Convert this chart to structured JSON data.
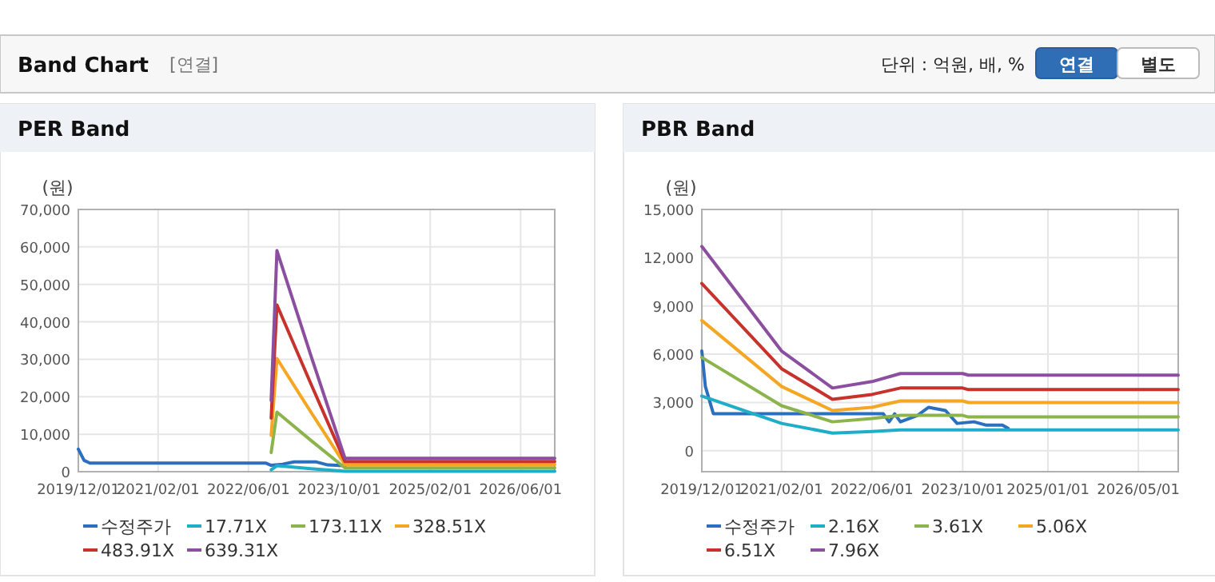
{
  "chart_data": [
    {
      "type": "other",
      "title": "Band Chart",
      "annotations": [
        "[연결]",
        "단위 : 억원, 배, %",
        "연결",
        "별도"
      ]
    },
    {
      "type": "line",
      "title": "PER Band",
      "ylabel": "(원)",
      "xlim": [
        "2019-12-01",
        "2026-12-01"
      ],
      "xticks": [
        {
          "value": "2019-12-01",
          "label": "2019/12/01"
        },
        {
          "value": "2021-02-01",
          "label": "2021/02/01"
        },
        {
          "value": "2022-06-01",
          "label": "2022/06/01"
        },
        {
          "value": "2023-10-01",
          "label": "2023/10/01"
        },
        {
          "value": "2025-02-01",
          "label": "2025/02/01"
        },
        {
          "value": "2026-06-01",
          "label": "2026/06/01"
        }
      ],
      "ylim": [
        0,
        70000
      ],
      "yticks": [
        {
          "value": 0,
          "label": "0"
        },
        {
          "value": 10000,
          "label": "10,000"
        },
        {
          "value": 20000,
          "label": "20,000"
        },
        {
          "value": 30000,
          "label": "30,000"
        },
        {
          "value": 40000,
          "label": "40,000"
        },
        {
          "value": 50000,
          "label": "50,000"
        },
        {
          "value": 60000,
          "label": "60,000"
        },
        {
          "value": 70000,
          "label": "70,000"
        }
      ],
      "grid": true,
      "legend": "bottom",
      "series": [
        {
          "name": "수정주가",
          "color": "#2c6fbe",
          "x": [
            "2019-12-01",
            "2020-01-01",
            "2020-02-01",
            "2022-09-01",
            "2022-10-01",
            "2022-12-01",
            "2023-02-01",
            "2023-06-01",
            "2023-08-01",
            "2023-11-01"
          ],
          "values": [
            6000,
            3000,
            2300,
            2300,
            1700,
            2000,
            2600,
            2600,
            1800,
            1600
          ]
        },
        {
          "name": "17.71X",
          "color": "#1eaec8",
          "x": [
            "2022-10-01",
            "2022-11-01",
            "2023-05-01",
            "2023-11-01",
            "2026-12-01"
          ],
          "values": [
            500,
            1600,
            800,
            100,
            100
          ]
        },
        {
          "name": "173.11X",
          "color": "#8cb44c",
          "x": [
            "2022-10-01",
            "2022-11-01",
            "2023-05-01",
            "2023-11-01",
            "2026-12-01"
          ],
          "values": [
            5100,
            15900,
            8400,
            1000,
            1000
          ]
        },
        {
          "name": "328.51X",
          "color": "#f5a623",
          "x": [
            "2022-10-01",
            "2022-11-01",
            "2023-05-01",
            "2023-11-01",
            "2026-12-01"
          ],
          "values": [
            9700,
            30200,
            16000,
            1900,
            1900
          ]
        },
        {
          "name": "483.91X",
          "color": "#c8322d",
          "x": [
            "2022-10-01",
            "2022-11-01",
            "2023-05-01",
            "2023-11-01",
            "2026-12-01"
          ],
          "values": [
            14300,
            44500,
            23600,
            2700,
            2700
          ]
        },
        {
          "name": "639.31X",
          "color": "#8c4fa0",
          "x": [
            "2022-10-01",
            "2022-11-01",
            "2023-05-01",
            "2023-11-01",
            "2026-12-01"
          ],
          "values": [
            19000,
            59000,
            31200,
            3600,
            3600
          ]
        }
      ]
    },
    {
      "type": "line",
      "title": "PBR Band",
      "ylabel": "(원)",
      "xlim": [
        "2019-12-01",
        "2026-12-01"
      ],
      "xticks": [
        {
          "value": "2019-12-01",
          "label": "2019/12/01"
        },
        {
          "value": "2021-02-01",
          "label": "2021/02/01"
        },
        {
          "value": "2022-06-01",
          "label": "2022/06/01"
        },
        {
          "value": "2023-10-01",
          "label": "2023/10/01"
        },
        {
          "value": "2025-01-01",
          "label": "2025/01/01"
        },
        {
          "value": "2026-05-01",
          "label": "2026/05/01"
        }
      ],
      "ylim": [
        -1300,
        15000
      ],
      "yticks": [
        {
          "value": 0,
          "label": "0"
        },
        {
          "value": 3000,
          "label": "3,000"
        },
        {
          "value": 6000,
          "label": "6,000"
        },
        {
          "value": 9000,
          "label": "9,000"
        },
        {
          "value": 12000,
          "label": "12,000"
        },
        {
          "value": 15000,
          "label": "15,000"
        }
      ],
      "grid": true,
      "legend": "bottom",
      "series": [
        {
          "name": "수정주가",
          "color": "#2c6fbe",
          "x": [
            "2019-12-01",
            "2019-12-20",
            "2020-02-01",
            "2022-08-01",
            "2022-09-01",
            "2022-10-01",
            "2022-11-01",
            "2023-02-01",
            "2023-04-01",
            "2023-07-01",
            "2023-09-01",
            "2023-12-01",
            "2024-02-01",
            "2024-05-01",
            "2024-06-01"
          ],
          "values": [
            6200,
            4000,
            2300,
            2300,
            1800,
            2300,
            1800,
            2200,
            2700,
            2500,
            1700,
            1800,
            1600,
            1600,
            1400
          ]
        },
        {
          "name": "2.16X",
          "color": "#1eaec8",
          "x": [
            "2019-12-01",
            "2021-02-01",
            "2021-11-01",
            "2022-06-01",
            "2022-11-01",
            "2023-10-01",
            "2023-11-01",
            "2026-12-01"
          ],
          "values": [
            3400,
            1700,
            1100,
            1200,
            1300,
            1300,
            1300,
            1300
          ]
        },
        {
          "name": "3.61X",
          "color": "#8cb44c",
          "x": [
            "2019-12-01",
            "2021-02-01",
            "2021-11-01",
            "2022-06-01",
            "2022-11-01",
            "2023-10-01",
            "2023-11-01",
            "2026-12-01"
          ],
          "values": [
            5800,
            2800,
            1800,
            2000,
            2200,
            2200,
            2100,
            2100
          ]
        },
        {
          "name": "5.06X",
          "color": "#f5a623",
          "x": [
            "2019-12-01",
            "2021-02-01",
            "2021-11-01",
            "2022-06-01",
            "2022-11-01",
            "2023-10-01",
            "2023-11-01",
            "2026-12-01"
          ],
          "values": [
            8100,
            4000,
            2500,
            2700,
            3100,
            3100,
            3000,
            3000
          ]
        },
        {
          "name": "6.51X",
          "color": "#c8322d",
          "x": [
            "2019-12-01",
            "2021-02-01",
            "2021-11-01",
            "2022-06-01",
            "2022-11-01",
            "2023-10-01",
            "2023-11-01",
            "2026-12-01"
          ],
          "values": [
            10400,
            5100,
            3200,
            3500,
            3900,
            3900,
            3800,
            3800
          ]
        },
        {
          "name": "7.96X",
          "color": "#8c4fa0",
          "x": [
            "2019-12-01",
            "2021-02-01",
            "2021-11-01",
            "2022-06-01",
            "2022-11-01",
            "2023-10-01",
            "2023-11-01",
            "2026-12-01"
          ],
          "values": [
            12700,
            6200,
            3900,
            4300,
            4800,
            4800,
            4700,
            4700
          ]
        }
      ]
    }
  ]
}
